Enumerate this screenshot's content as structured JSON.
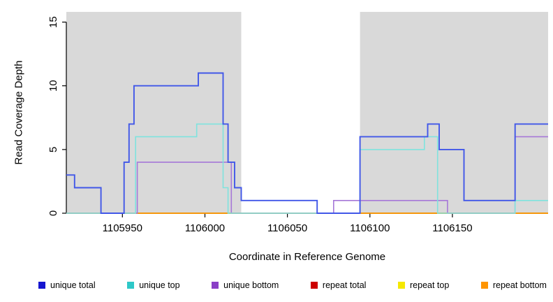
{
  "chart_data": {
    "type": "line",
    "subtype": "step",
    "title": "",
    "xlabel": "Coordinate in Reference Genome",
    "ylabel": "Read Coverage Depth",
    "xlim": [
      1105916,
      1106208
    ],
    "ylim": [
      0,
      15.8
    ],
    "xticks": [
      1105950,
      1106000,
      1106050,
      1106100,
      1106150
    ],
    "yticks": [
      0,
      5,
      10,
      15
    ],
    "grid": false,
    "legend_position": "bottom",
    "background_color": "#ffffff",
    "shaded_region_color": "#d9d9d9",
    "shaded_regions": [
      {
        "x0": 1105916,
        "x1": 1106022,
        "color": "#d9d9d9",
        "label": "shaded-region-left"
      },
      {
        "x0": 1106094,
        "x1": 1106208,
        "color": "#d9d9d9",
        "label": "shaded-region-right"
      }
    ],
    "series": [
      {
        "name": "repeat total",
        "color": "#cc0000",
        "legend_color": "#cc0000",
        "steps": [
          [
            1105916,
            0
          ]
        ]
      },
      {
        "name": "repeat top",
        "color": "#f5e800",
        "legend_color": "#f5e800",
        "steps": [
          [
            1105916,
            0
          ]
        ]
      },
      {
        "name": "repeat bottom",
        "color": "#ff9500",
        "legend_color": "#ff9500",
        "steps": [
          [
            1105916,
            0
          ]
        ]
      },
      {
        "name": "unique bottom",
        "color": "#a678d8",
        "legend_color": "#8a3fc6",
        "steps": [
          [
            1105916,
            0
          ],
          [
            1105959,
            4
          ],
          [
            1106016,
            0
          ],
          [
            1106078,
            1
          ],
          [
            1106147,
            0
          ],
          [
            1106188,
            6
          ]
        ]
      },
      {
        "name": "unique top",
        "color": "#7fe3de",
        "legend_color": "#2ec8c8",
        "steps": [
          [
            1105916,
            0
          ],
          [
            1105958,
            6
          ],
          [
            1105995,
            7
          ],
          [
            1106011,
            2
          ],
          [
            1106014,
            0
          ],
          [
            1106094,
            5
          ],
          [
            1106133,
            6
          ],
          [
            1106141,
            0
          ],
          [
            1106188,
            1
          ]
        ]
      },
      {
        "name": "unique total",
        "color": "#4157e8",
        "legend_color": "#1515cf",
        "steps": [
          [
            1105916,
            3
          ],
          [
            1105921,
            2
          ],
          [
            1105937,
            0
          ],
          [
            1105951,
            4
          ],
          [
            1105954,
            7
          ],
          [
            1105957,
            10
          ],
          [
            1105996,
            11
          ],
          [
            1106011,
            7
          ],
          [
            1106014,
            4
          ],
          [
            1106018,
            2
          ],
          [
            1106022,
            1
          ],
          [
            1106068,
            0
          ],
          [
            1106094,
            6
          ],
          [
            1106135,
            7
          ],
          [
            1106142,
            5
          ],
          [
            1106157,
            1
          ],
          [
            1106188,
            7
          ]
        ]
      }
    ],
    "legend": [
      {
        "label": "unique total",
        "color": "#1515cf"
      },
      {
        "label": "unique top",
        "color": "#2ec8c8"
      },
      {
        "label": "unique bottom",
        "color": "#8a3fc6"
      },
      {
        "label": "repeat total",
        "color": "#cc0000"
      },
      {
        "label": "repeat top",
        "color": "#f5e800"
      },
      {
        "label": "repeat bottom",
        "color": "#ff9500"
      }
    ]
  }
}
